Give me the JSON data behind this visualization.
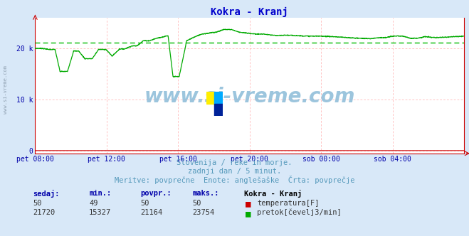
{
  "title": "Kokra - Kranj",
  "title_color": "#0000cc",
  "bg_color": "#d8e8f8",
  "plot_bg_color": "#ffffff",
  "grid_color": "#ffaaaa",
  "avg_line_color": "#00bb00",
  "avg_line_value": 21164,
  "flow_color": "#00aa00",
  "temp_color": "#cc0000",
  "spine_color": "#cc0000",
  "xticklabels": [
    "pet 08:00",
    "pet 12:00",
    "pet 16:00",
    "pet 20:00",
    "sob 00:00",
    "sob 04:00"
  ],
  "xtick_positions": [
    0,
    288,
    576,
    864,
    1152,
    1440
  ],
  "ytick_positions": [
    0,
    10000,
    20000
  ],
  "ytick_labels": [
    "0",
    "10 k",
    "20 k"
  ],
  "ymax": 26000,
  "ymin": -500,
  "xmin": 0,
  "xmax": 1728,
  "tick_color": "#0000aa",
  "watermark": "www.si-vreme.com",
  "subtitle1": "Slovenija / reke in morje.",
  "subtitle2": "zadnji dan / 5 minut.",
  "subtitle3": "Meritve: povprečne  Enote: anglešaške  Črta: povprečje",
  "subtitle_color": "#5599bb",
  "table_headers": [
    "sedaj:",
    "min.:",
    "povpr.:",
    "maks.:"
  ],
  "table_row1": [
    "50",
    "49",
    "50",
    "50"
  ],
  "table_row2": [
    "21720",
    "15327",
    "21164",
    "23754"
  ],
  "station_name": "Kokra - Kranj",
  "legend1": "temperatura[F]",
  "legend2": "pretok[čevelj3/min]",
  "table_header_color": "#0000aa",
  "table_val_color": "#333333",
  "logo_colors": [
    "#ffee00",
    "#00aaff",
    "#002299"
  ],
  "side_watermark": "www.si-vreme.com",
  "side_watermark_color": "#8899aa"
}
